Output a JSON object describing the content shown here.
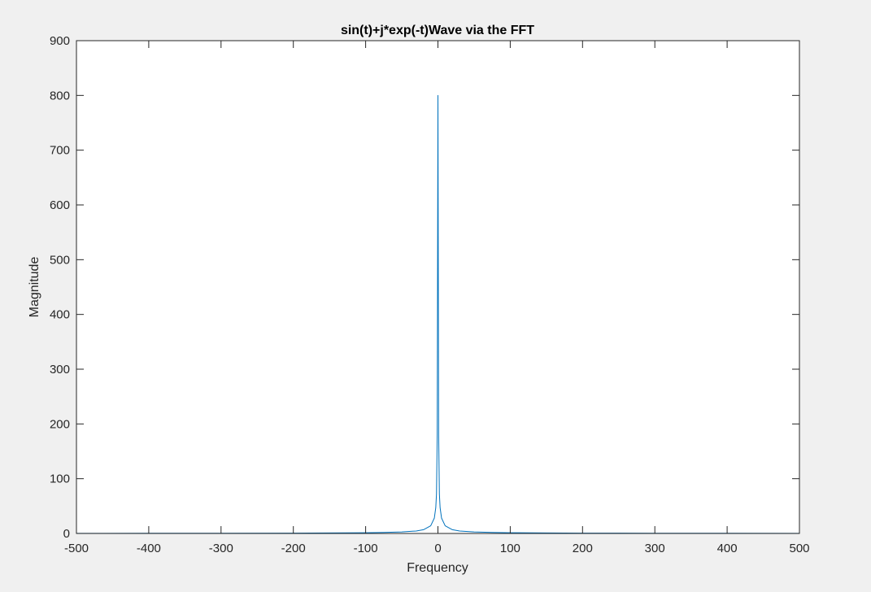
{
  "colors": {
    "figure_background": "#f0f0f0",
    "plot_background": "#ffffff",
    "axis": "#262626",
    "series": "#0072bd"
  },
  "chart_data": {
    "type": "line",
    "title": "sin(t)+j*exp(-t)Wave via the FFT",
    "xlabel": "Frequency",
    "ylabel": "Magnitude",
    "xlim": [
      -500,
      500
    ],
    "ylim": [
      0,
      900
    ],
    "xticks": [
      -500,
      -400,
      -300,
      -200,
      -100,
      0,
      100,
      200,
      300,
      400,
      500
    ],
    "yticks": [
      0,
      100,
      200,
      300,
      400,
      500,
      600,
      700,
      800,
      900
    ],
    "xtick_labels": [
      "-500",
      "-400",
      "-300",
      "-200",
      "-100",
      "0",
      "100",
      "200",
      "300",
      "400",
      "500"
    ],
    "ytick_labels": [
      "0",
      "100",
      "200",
      "300",
      "400",
      "500",
      "600",
      "700",
      "800",
      "900"
    ],
    "grid": false,
    "box": true,
    "series": [
      {
        "x": [
          -500,
          -400,
          -300,
          -200,
          -150,
          -100,
          -75,
          -50,
          -30,
          -20,
          -10,
          -5,
          -3,
          -2,
          -1,
          0,
          1,
          2,
          3,
          5,
          10,
          20,
          30,
          50,
          75,
          100,
          150,
          200,
          300,
          400,
          500
        ],
        "y": [
          0.2,
          0.3,
          0.4,
          0.6,
          0.9,
          1.3,
          1.8,
          2.7,
          4.5,
          6.8,
          14,
          28,
          47,
          72,
          180,
          800,
          180,
          72,
          47,
          28,
          14,
          6.8,
          4.5,
          2.7,
          1.8,
          1.3,
          0.9,
          0.6,
          0.4,
          0.3,
          0.2
        ]
      }
    ]
  }
}
